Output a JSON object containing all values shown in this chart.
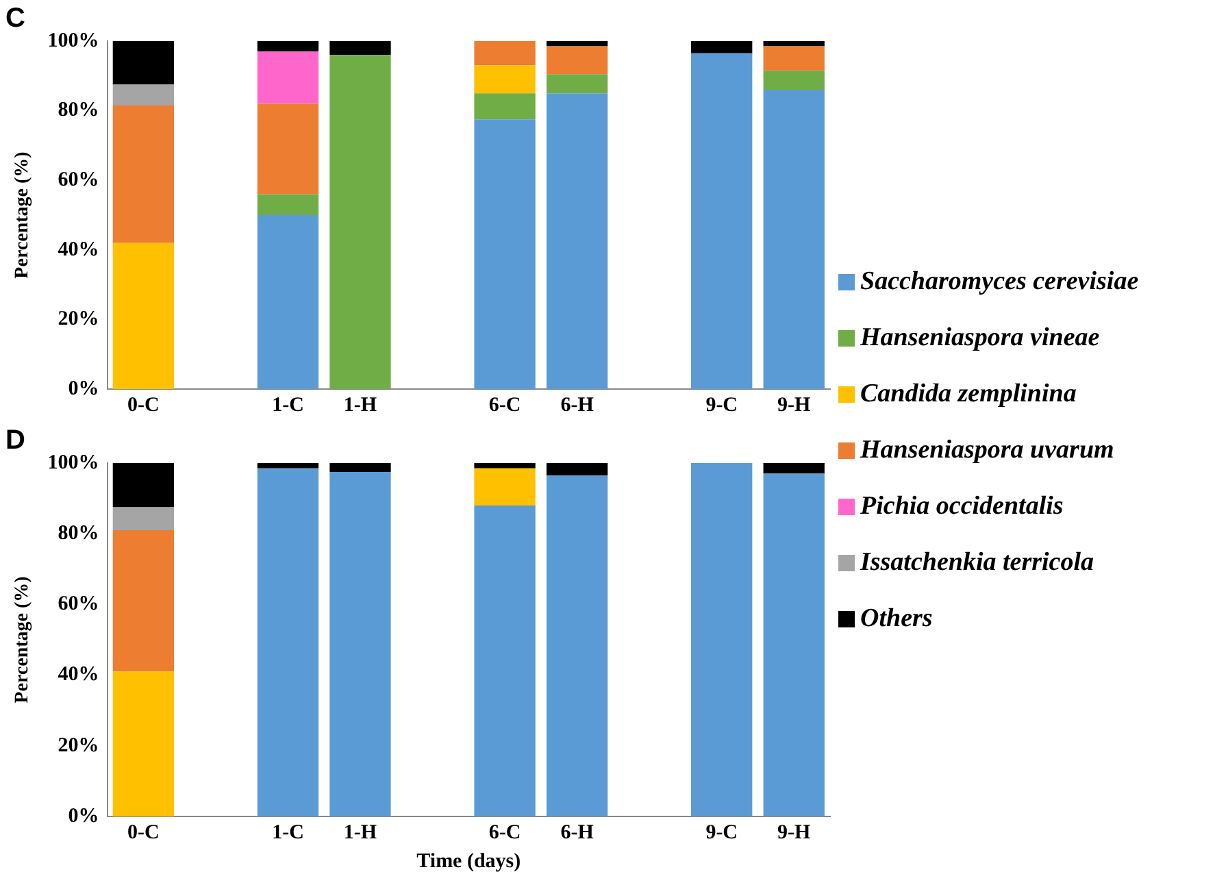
{
  "chart_data": [
    {
      "type": "bar",
      "title": "C",
      "ylabel": "Percentage (%)",
      "stacked": true,
      "grid": false,
      "legend": "right",
      "categories": [
        "0-C",
        null,
        "1-C",
        "1-H",
        null,
        "6-C",
        "6-H",
        null,
        "9-C",
        "9-H"
      ],
      "ylim": [
        0,
        100
      ],
      "yticks": [
        {
          "value": 0,
          "label": "0%"
        },
        {
          "value": 20,
          "label": "20%"
        },
        {
          "value": 40,
          "label": "40%"
        },
        {
          "value": 60,
          "label": "60%"
        },
        {
          "value": 80,
          "label": "80%"
        },
        {
          "value": 100,
          "label": "100%"
        }
      ],
      "series": [
        {
          "name": "Saccharomyces cerevisiae",
          "color": "#5b9bd5",
          "values": [
            null,
            null,
            50,
            null,
            null,
            77.5,
            85,
            null,
            96.5,
            86
          ]
        },
        {
          "name": "Hanseniaspora vineae",
          "color": "#70ad47",
          "values": [
            null,
            null,
            6,
            96,
            null,
            7.5,
            5.5,
            null,
            null,
            5.5
          ]
        },
        {
          "name": "Candida zemplinina",
          "color": "#ffc000",
          "values": [
            42,
            null,
            null,
            null,
            null,
            8,
            null,
            null,
            null,
            null
          ]
        },
        {
          "name": "Hanseniaspora uvarum",
          "color": "#ed7d31",
          "values": [
            39.5,
            null,
            26,
            null,
            null,
            7,
            8,
            null,
            null,
            7
          ]
        },
        {
          "name": "Pichia occidentalis",
          "color": "#ff66cc",
          "values": [
            null,
            null,
            15,
            null,
            null,
            null,
            null,
            null,
            null,
            null
          ]
        },
        {
          "name": "Issatchenkia terricola",
          "color": "#a5a5a5",
          "values": [
            6,
            null,
            null,
            null,
            null,
            null,
            null,
            null,
            null,
            null
          ]
        },
        {
          "name": "Others",
          "color": "#000000",
          "values": [
            12.5,
            null,
            3,
            4,
            null,
            null,
            1.5,
            null,
            3.5,
            1.5
          ]
        }
      ]
    },
    {
      "type": "bar",
      "title": "D",
      "ylabel": "Percentage (%)",
      "xlabel": "Time (days)",
      "stacked": true,
      "grid": false,
      "categories": [
        "0-C",
        null,
        "1-C",
        "1-H",
        null,
        "6-C",
        "6-H",
        null,
        "9-C",
        "9-H"
      ],
      "ylim": [
        0,
        100
      ],
      "yticks": [
        {
          "value": 0,
          "label": "0%"
        },
        {
          "value": 20,
          "label": "20%"
        },
        {
          "value": 40,
          "label": "40%"
        },
        {
          "value": 60,
          "label": "60%"
        },
        {
          "value": 80,
          "label": "80%"
        },
        {
          "value": 100,
          "label": "100%"
        }
      ],
      "series": [
        {
          "color": "#5b9bd5",
          "values": [
            null,
            null,
            98.5,
            97.5,
            null,
            88,
            96.5,
            null,
            100,
            97
          ]
        },
        {
          "color": "#ffc000",
          "values": [
            41,
            null,
            null,
            null,
            null,
            10.5,
            null,
            null,
            null,
            null
          ]
        },
        {
          "color": "#ed7d31",
          "values": [
            40,
            null,
            null,
            null,
            null,
            null,
            null,
            null,
            null,
            null
          ]
        },
        {
          "color": "#a5a5a5",
          "values": [
            6.5,
            null,
            null,
            null,
            null,
            null,
            null,
            null,
            null,
            null
          ]
        },
        {
          "color": "#000000",
          "values": [
            12.5,
            null,
            1.5,
            2.5,
            null,
            1.5,
            3.5,
            null,
            null,
            3
          ]
        }
      ]
    }
  ]
}
